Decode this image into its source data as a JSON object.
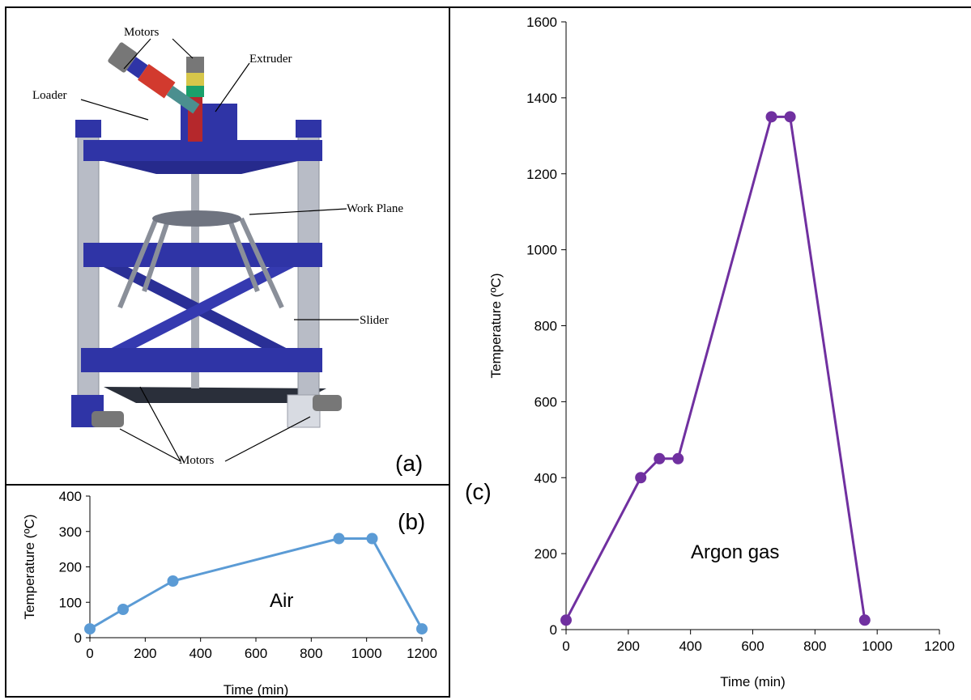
{
  "panel_a": {
    "letter": "(a)",
    "callouts": {
      "motors_top": "Motors",
      "extruder": "Extruder",
      "loader": "Loader",
      "work_plane": "Work Plane",
      "slider": "Slider",
      "motors_bottom": "Motors"
    },
    "colors": {
      "frame": "#2f34a6",
      "column": "#b8bcc6",
      "motor": "#777777",
      "loader": "#d23a2e",
      "extruder_band": "#1aa06b"
    }
  },
  "chart_data": [
    {
      "id": "b",
      "type": "line",
      "panel_letter": "(b)",
      "x": [
        0,
        120,
        300,
        900,
        1020,
        1200
      ],
      "series": [
        {
          "values": [
            25,
            80,
            160,
            280,
            280,
            25
          ],
          "color": "#5b9bd5"
        }
      ],
      "annotation": "Air",
      "xlabel": "Time  (min)",
      "ylabel": "Temperature  (ºC)",
      "xlim": [
        0,
        1200
      ],
      "ylim": [
        0,
        400
      ],
      "xticks": [
        0,
        200,
        400,
        600,
        800,
        1000,
        1200
      ],
      "yticks": [
        0,
        100,
        200,
        300,
        400
      ],
      "grid": false
    },
    {
      "id": "c",
      "type": "line",
      "panel_letter": "(c)",
      "x": [
        0,
        240,
        300,
        360,
        660,
        720,
        960
      ],
      "series": [
        {
          "values": [
            25,
            400,
            450,
            450,
            1350,
            1350,
            25
          ],
          "color": "#7030a0"
        }
      ],
      "annotation": "Argon gas",
      "xlabel": "Time  (min)",
      "ylabel": "Temperature  (ºC)",
      "xlim": [
        0,
        1200
      ],
      "ylim": [
        0,
        1600
      ],
      "xticks": [
        0,
        200,
        400,
        600,
        800,
        1000,
        1200
      ],
      "yticks": [
        0,
        200,
        400,
        600,
        800,
        1000,
        1200,
        1400,
        1600
      ],
      "grid": false
    }
  ]
}
